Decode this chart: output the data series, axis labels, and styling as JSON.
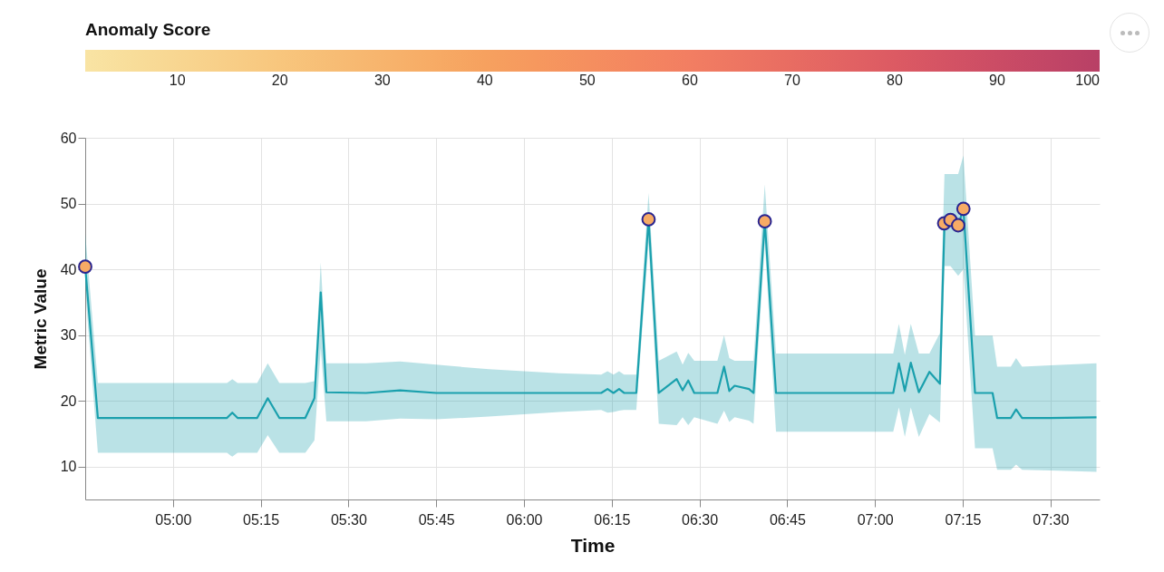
{
  "chart_data": {
    "type": "line",
    "xlabel": "Time",
    "ylabel": "Metric Value",
    "clabel": "Anomaly Score",
    "clim": [
      1,
      100
    ],
    "cticks": [
      10,
      20,
      30,
      40,
      50,
      60,
      70,
      80,
      90,
      100
    ],
    "xlim": [
      4.75,
      7.64
    ],
    "xticks": [
      {
        "value": 5,
        "label": "05:00"
      },
      {
        "value": 5.25,
        "label": "05:15"
      },
      {
        "value": 5.5,
        "label": "05:30"
      },
      {
        "value": 5.75,
        "label": "05:45"
      },
      {
        "value": 6,
        "label": "06:00"
      },
      {
        "value": 6.25,
        "label": "06:15"
      },
      {
        "value": 6.5,
        "label": "06:30"
      },
      {
        "value": 6.75,
        "label": "06:45"
      },
      {
        "value": 7,
        "label": "07:00"
      },
      {
        "value": 7.25,
        "label": "07:15"
      },
      {
        "value": 7.5,
        "label": "07:30"
      }
    ],
    "ylim": [
      5,
      60
    ],
    "yticks": [
      10,
      20,
      30,
      40,
      50,
      60
    ],
    "grid": true,
    "series": [
      {
        "color": "#1aa0ad",
        "line_style": "solid",
        "x": [
          4.75,
          4.786,
          5.154,
          5.169,
          5.184,
          5.24,
          5.27,
          5.303,
          5.377,
          5.403,
          5.421,
          5.437,
          5.55,
          5.647,
          5.75,
          5.9,
          6.1,
          6.22,
          6.238,
          6.255,
          6.271,
          6.285,
          6.32,
          6.355,
          6.384,
          6.435,
          6.452,
          6.468,
          6.485,
          6.551,
          6.57,
          6.585,
          6.6,
          6.641,
          6.654,
          6.686,
          6.718,
          7.052,
          7.068,
          7.085,
          7.102,
          7.125,
          7.155,
          7.185,
          7.198,
          7.215,
          7.237,
          7.252,
          7.285,
          7.335,
          7.348,
          7.387,
          7.402,
          7.419,
          7.5,
          7.631
        ],
        "values": [
          40.4,
          17.4,
          17.4,
          18.2,
          17.4,
          17.4,
          20.4,
          17.4,
          17.4,
          20.4,
          36.5,
          21.3,
          21.2,
          21.6,
          21.2,
          21.2,
          21.2,
          21.2,
          21.8,
          21.2,
          21.8,
          21.2,
          21.2,
          47.6,
          21.2,
          23.3,
          21.6,
          23.1,
          21.2,
          21.2,
          25.2,
          21.5,
          22.3,
          21.8,
          21.2,
          47.3,
          21.2,
          21.2,
          25.7,
          21.5,
          25.8,
          21.3,
          24.4,
          22.6,
          46.9,
          47.5,
          46.7,
          49.2,
          21.2,
          21.2,
          17.4,
          17.4,
          18.7,
          17.4,
          17.4,
          17.5
        ],
        "lower": [
          37,
          12.1,
          12.1,
          11.5,
          12.1,
          12.1,
          14.8,
          12.1,
          12.1,
          14,
          28,
          16.9,
          16.9,
          17.3,
          17.2,
          17.6,
          18.3,
          18.6,
          18.2,
          18.3,
          18.5,
          18.6,
          18.6,
          44,
          16.5,
          16.3,
          17.5,
          16.3,
          17.5,
          16.5,
          18.5,
          16.8,
          17.5,
          17,
          16.5,
          44,
          15.3,
          15.3,
          19,
          14.5,
          19,
          14.5,
          18,
          16.7,
          40.5,
          40.5,
          39,
          40,
          12.8,
          12.8,
          9.5,
          9.5,
          10.3,
          9.5,
          9.4,
          9.2
        ],
        "upper": [
          45.5,
          22.7,
          22.7,
          23.3,
          22.7,
          22.7,
          25.7,
          22.7,
          22.7,
          23,
          41,
          25.7,
          25.7,
          26,
          25.5,
          24.8,
          24.2,
          24,
          24.5,
          24,
          24.5,
          24,
          24,
          51.6,
          26.1,
          27.5,
          25.5,
          27.3,
          26.1,
          26.1,
          30,
          26.5,
          26.1,
          26.1,
          26.1,
          52.9,
          27.2,
          27.2,
          31.7,
          27,
          31.7,
          27.2,
          27.2,
          30.3,
          54.5,
          54.5,
          54.5,
          57.3,
          29.9,
          29.9,
          25.2,
          25.2,
          26.5,
          25.2,
          25.4,
          25.7
        ]
      },
      {
        "type": "scatter",
        "marker": "circle",
        "x": [
          4.75,
          6.355,
          6.686,
          7.197,
          7.215,
          7.237,
          7.252
        ],
        "values": [
          40.4,
          47.6,
          47.3,
          47.0,
          47.5,
          46.7,
          49.2
        ],
        "cvalues": [
          35,
          35,
          35,
          35,
          35,
          35,
          35
        ]
      }
    ]
  }
}
